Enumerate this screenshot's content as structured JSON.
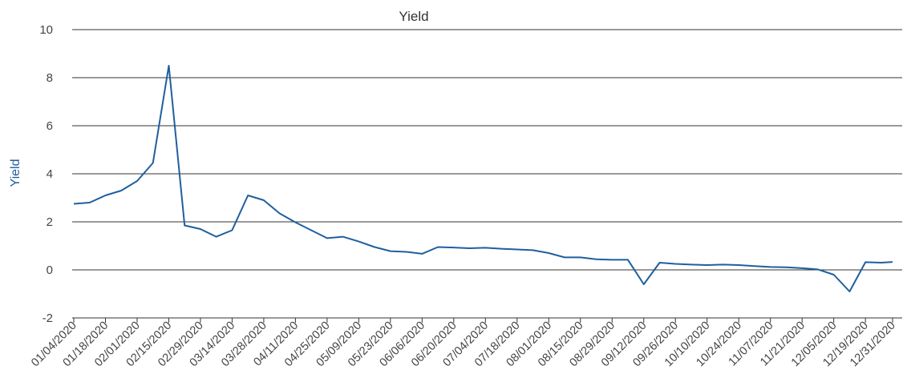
{
  "chart_data": {
    "type": "line",
    "title": "Yield",
    "xlabel": "",
    "ylabel": "Yield",
    "ylim": [
      -2,
      10
    ],
    "yticks": [
      10,
      8,
      6,
      4,
      2,
      0,
      -2
    ],
    "grid": true,
    "x_tick_labels": [
      "01/04/2020",
      "01/18/2020",
      "02/01/2020",
      "02/15/2020",
      "02/29/2020",
      "03/14/2020",
      "03/28/2020",
      "04/11/2020",
      "04/25/2020",
      "05/09/2020",
      "05/23/2020",
      "06/06/2020",
      "06/20/2020",
      "07/04/2020",
      "07/18/2020",
      "08/01/2020",
      "08/15/2020",
      "08/29/2020",
      "09/12/2020",
      "09/26/2020",
      "10/10/2020",
      "10/24/2020",
      "11/07/2020",
      "11/21/2020",
      "12/05/2020",
      "12/19/2020",
      "12/31/2020"
    ],
    "series": [
      {
        "color": "#1f5f9e",
        "x": [
          "01/04/2020",
          "01/11/2020",
          "01/18/2020",
          "01/25/2020",
          "02/01/2020",
          "02/08/2020",
          "02/15/2020",
          "02/22/2020",
          "02/29/2020",
          "03/07/2020",
          "03/14/2020",
          "03/21/2020",
          "03/28/2020",
          "04/04/2020",
          "04/11/2020",
          "04/18/2020",
          "04/25/2020",
          "05/02/2020",
          "05/09/2020",
          "05/16/2020",
          "05/23/2020",
          "05/30/2020",
          "06/06/2020",
          "06/13/2020",
          "06/20/2020",
          "06/27/2020",
          "07/04/2020",
          "07/11/2020",
          "07/18/2020",
          "07/25/2020",
          "08/01/2020",
          "08/08/2020",
          "08/15/2020",
          "08/22/2020",
          "08/29/2020",
          "09/05/2020",
          "09/12/2020",
          "09/19/2020",
          "09/26/2020",
          "10/03/2020",
          "10/10/2020",
          "10/17/2020",
          "10/24/2020",
          "10/31/2020",
          "11/07/2020",
          "11/14/2020",
          "11/21/2020",
          "11/28/2020",
          "12/05/2020",
          "12/12/2020",
          "12/19/2020",
          "12/26/2020",
          "12/31/2020"
        ],
        "values": [
          2.75,
          2.8,
          3.1,
          3.3,
          3.7,
          4.45,
          8.5,
          1.85,
          1.7,
          1.38,
          1.65,
          3.1,
          2.9,
          2.35,
          1.98,
          1.65,
          1.32,
          1.38,
          1.18,
          0.95,
          0.78,
          0.75,
          0.67,
          0.95,
          0.93,
          0.9,
          0.92,
          0.88,
          0.85,
          0.82,
          0.7,
          0.52,
          0.52,
          0.44,
          0.42,
          0.42,
          -0.6,
          0.3,
          0.25,
          0.22,
          0.2,
          0.22,
          0.2,
          0.16,
          0.12,
          0.11,
          0.07,
          0.02,
          -0.2,
          -0.9,
          0.32,
          0.3,
          0.33
        ]
      }
    ]
  }
}
